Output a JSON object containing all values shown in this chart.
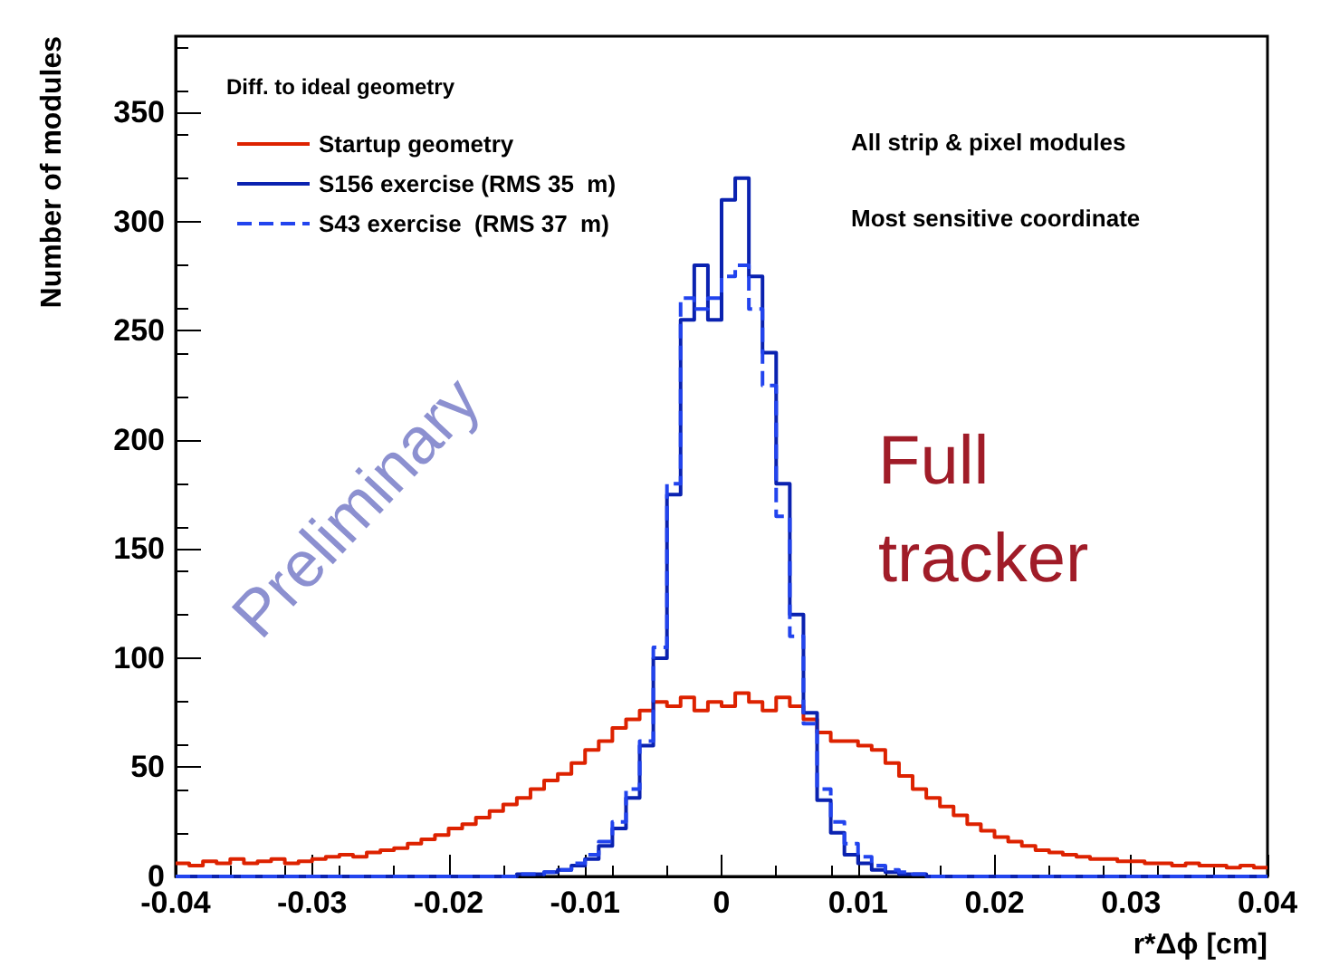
{
  "chart_data": {
    "type": "histogram",
    "xlabel": "r*Δϕ [cm]",
    "ylabel": "Number of modules",
    "legend_title": "Diff. to ideal geometry",
    "bins": [
      -0.04,
      -0.039,
      -0.038,
      -0.037,
      -0.036,
      -0.035,
      -0.034,
      -0.033,
      -0.032,
      -0.031,
      -0.03,
      -0.029,
      -0.028,
      -0.027,
      -0.026,
      -0.025,
      -0.024,
      -0.023,
      -0.022,
      -0.021,
      -0.02,
      -0.019,
      -0.018,
      -0.017,
      -0.016,
      -0.015,
      -0.014,
      -0.013,
      -0.012,
      -0.011,
      -0.01,
      -0.009,
      -0.008,
      -0.007,
      -0.006,
      -0.005,
      -0.004,
      -0.003,
      -0.002,
      -0.001,
      0,
      0.001,
      0.002,
      0.003,
      0.004,
      0.005,
      0.006,
      0.007,
      0.008,
      0.009,
      0.01,
      0.011,
      0.012,
      0.013,
      0.014,
      0.015,
      0.016,
      0.017,
      0.018,
      0.019,
      0.02,
      0.021,
      0.022,
      0.023,
      0.024,
      0.025,
      0.026,
      0.027,
      0.028,
      0.029,
      0.03,
      0.031,
      0.032,
      0.033,
      0.034,
      0.035,
      0.036,
      0.037,
      0.038,
      0.039,
      0.04
    ],
    "series": [
      {
        "name": "Startup geometry",
        "color": "#dd2200",
        "values": [
          6,
          5,
          7,
          6,
          8,
          6,
          7,
          8,
          6,
          7,
          8,
          9,
          10,
          9,
          11,
          12,
          13,
          15,
          17,
          19,
          22,
          24,
          27,
          30,
          33,
          36,
          40,
          44,
          47,
          52,
          58,
          62,
          68,
          72,
          76,
          80,
          78,
          82,
          76,
          80,
          78,
          84,
          80,
          76,
          82,
          78,
          72,
          66,
          62,
          62,
          60,
          58,
          52,
          46,
          40,
          36,
          32,
          28,
          24,
          21,
          18,
          16,
          14,
          12,
          11,
          10,
          9,
          8,
          8,
          7,
          7,
          6,
          6,
          5,
          6,
          5,
          5,
          4,
          5,
          4
        ]
      },
      {
        "name": "S156 exercise (RMS 35  m)",
        "color": "#0a22b0",
        "values": [
          0,
          0,
          0,
          0,
          0,
          0,
          0,
          0,
          0,
          0,
          0,
          0,
          0,
          0,
          0,
          0,
          0,
          0,
          0,
          0,
          0,
          0,
          0,
          0,
          0,
          1,
          1,
          2,
          3,
          5,
          8,
          14,
          22,
          36,
          60,
          100,
          175,
          255,
          280,
          255,
          310,
          320,
          275,
          240,
          180,
          120,
          75,
          35,
          20,
          10,
          6,
          3,
          2,
          1,
          1,
          0,
          0,
          0,
          0,
          0,
          0,
          0,
          0,
          0,
          0,
          0,
          0,
          0,
          0,
          0,
          0,
          0,
          0,
          0,
          0,
          0,
          0,
          0,
          0,
          0
        ]
      },
      {
        "name": "S43 exercise  (RMS 37  m)",
        "color": "#2244ee",
        "line_style": "dashed",
        "values": [
          0,
          0,
          0,
          0,
          0,
          0,
          0,
          0,
          0,
          0,
          0,
          0,
          0,
          0,
          0,
          0,
          0,
          0,
          0,
          0,
          0,
          0,
          0,
          0,
          0,
          1,
          1,
          2,
          3,
          6,
          10,
          16,
          25,
          40,
          62,
          105,
          180,
          265,
          260,
          265,
          275,
          280,
          260,
          225,
          165,
          110,
          70,
          40,
          25,
          15,
          9,
          5,
          3,
          2,
          1,
          0,
          0,
          0,
          0,
          0,
          0,
          0,
          0,
          0,
          0,
          0,
          0,
          0,
          0,
          0,
          0,
          0,
          0,
          0,
          0,
          0,
          0,
          0,
          0,
          0
        ]
      }
    ],
    "xlim": [
      -0.04,
      0.04
    ],
    "xticks": [
      -0.04,
      -0.03,
      -0.02,
      -0.01,
      0,
      0.01,
      0.02,
      0.03,
      0.04
    ],
    "ylim": [
      0,
      385
    ],
    "yticks": [
      0,
      50,
      100,
      150,
      200,
      250,
      300,
      350
    ],
    "grid": false,
    "legend": "top left",
    "annotations": [
      "All strip & pixel modules",
      "Most sensitive coordinate",
      "Preliminary",
      "Full tracker"
    ]
  }
}
